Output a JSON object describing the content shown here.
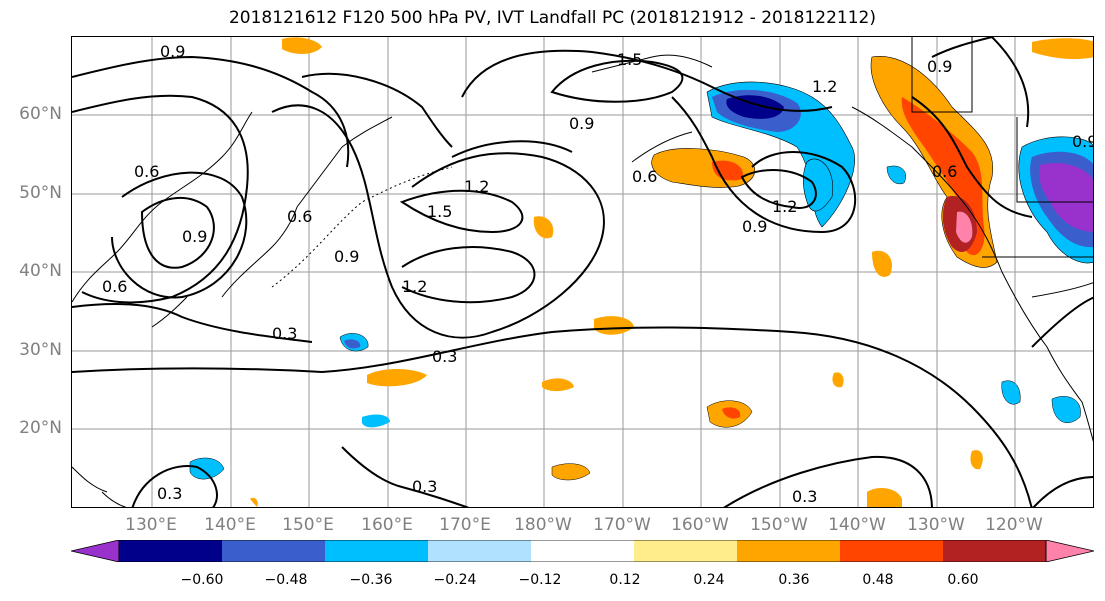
{
  "title": "2018121612 F120 500 hPa PV, IVT Landfall PC (2018121912 - 2018122112)",
  "lat_labels": [
    "60°N",
    "50°N",
    "40°N",
    "30°N",
    "20°N"
  ],
  "lon_labels": [
    "130°E",
    "140°E",
    "150°E",
    "160°E",
    "170°E",
    "180°W",
    "170°W",
    "160°W",
    "150°W",
    "140°W",
    "130°W",
    "120°W"
  ],
  "contour_labels": [
    "0.9",
    "1.5",
    "1.2",
    "0.9",
    "0.6",
    "1.2",
    "1.5",
    "0.6",
    "0.9",
    "1.2",
    "1.2",
    "0.9",
    "0.6",
    "0.9",
    "0.9",
    "0.6",
    "0.3",
    "0.3",
    "0.3",
    "0.3",
    "0.3",
    "0.6",
    "0.9"
  ],
  "colorbar": {
    "ticks": [
      "−0.60",
      "−0.48",
      "−0.36",
      "−0.24",
      "−0.12",
      "0.12",
      "0.24",
      "0.36",
      "0.48",
      "0.60"
    ],
    "colors": [
      "#9932cc",
      "#00008b",
      "#3a5fcd",
      "#00bfff",
      "#b0e2ff",
      "#ffffff",
      "#ffec8b",
      "#ffa500",
      "#ff4500",
      "#b22222",
      "#ff82ab"
    ]
  }
}
